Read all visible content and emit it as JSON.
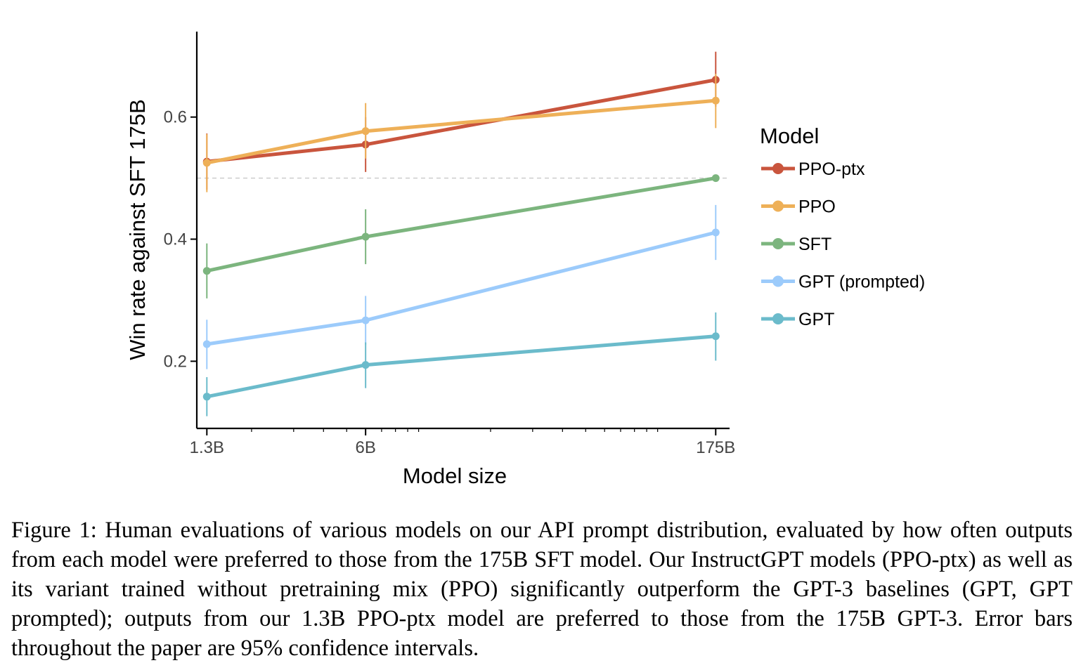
{
  "chart_data": {
    "type": "line",
    "xlabel": "Model size",
    "ylabel": "Win rate against SFT 175B",
    "x_scale": "log",
    "x": [
      1.3,
      6,
      175
    ],
    "x_tick_labels": [
      "1.3B",
      "6B",
      "175B"
    ],
    "y_ticks": [
      0.2,
      0.4,
      0.6
    ],
    "ylim": [
      0.09,
      0.74
    ],
    "xlim": [
      1.18,
      200
    ],
    "reference_line": 0.5,
    "legend_title": "Model",
    "legend_position": "right",
    "series": [
      {
        "name": "PPO-ptx",
        "color": "#c9553d",
        "values": [
          0.527,
          0.555,
          0.661
        ],
        "lower": [
          0.481,
          0.51,
          0.617
        ],
        "upper": [
          0.573,
          0.6,
          0.707
        ]
      },
      {
        "name": "PPO",
        "color": "#eeb058",
        "values": [
          0.525,
          0.577,
          0.627
        ],
        "lower": [
          0.477,
          0.532,
          0.582
        ],
        "upper": [
          0.572,
          0.623,
          0.671
        ]
      },
      {
        "name": "SFT",
        "color": "#7cb57e",
        "values": [
          0.348,
          0.404,
          0.5
        ],
        "lower": [
          0.303,
          0.359,
          0.5
        ],
        "upper": [
          0.393,
          0.449,
          0.5
        ]
      },
      {
        "name": "GPT (prompted)",
        "color": "#9ccbfb",
        "values": [
          0.228,
          0.267,
          0.411
        ],
        "lower": [
          0.187,
          0.227,
          0.366
        ],
        "upper": [
          0.268,
          0.307,
          0.456
        ]
      },
      {
        "name": "GPT",
        "color": "#6bbbcb",
        "values": [
          0.142,
          0.194,
          0.241
        ],
        "lower": [
          0.11,
          0.156,
          0.201
        ],
        "upper": [
          0.174,
          0.231,
          0.28
        ]
      }
    ]
  },
  "caption": "Figure 1: Human evaluations of various models on our API prompt distribution, evaluated by how often outputs from each model were preferred to those from the 175B SFT model. Our InstructGPT models (PPO-ptx) as well as its variant trained without pretraining mix (PPO) significantly outperform the GPT-3 baselines (GPT, GPT prompted); outputs from our 1.3B PPO-ptx model are preferred to those from the 175B GPT-3. Error bars throughout the paper are 95% confidence intervals."
}
